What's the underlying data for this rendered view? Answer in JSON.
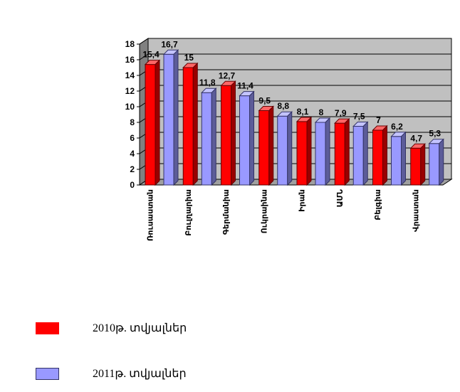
{
  "chart_data": {
    "type": "bar",
    "style": "3d-clustered-column",
    "categories": [
      "Ռուսաստան",
      "Բուլղարիա",
      "Գերմանիա",
      "Ուկրաինա",
      "Իրան",
      "ԱՄՆ",
      "Բելգիա",
      "Վրաստան"
    ],
    "series": [
      {
        "name": "2010թ. տվյալներ",
        "color": "#ff0000",
        "values": [
          15.4,
          15,
          12.7,
          9.5,
          8.1,
          7.9,
          7,
          4.7
        ],
        "labels": [
          "15,4",
          "15",
          "12,7",
          "9,5",
          "8,1",
          "7,9",
          "7",
          "4,7"
        ]
      },
      {
        "name": "2011թ. տվյալներ",
        "color": "#9999ff",
        "values": [
          16.7,
          11.8,
          11.4,
          8.8,
          8,
          7.5,
          6.2,
          5.3
        ],
        "labels": [
          "16,7",
          "11,8",
          "11,4",
          "8,8",
          "8",
          "7,5",
          "6,2",
          "5,3"
        ]
      }
    ],
    "yticks": [
      "0",
      "2",
      "4",
      "6",
      "8",
      "10",
      "12",
      "14",
      "16",
      "18"
    ],
    "ylim": [
      0,
      18
    ],
    "grid": true,
    "plot_background": "#c0c0c0",
    "legend_position": "bottom-left"
  }
}
